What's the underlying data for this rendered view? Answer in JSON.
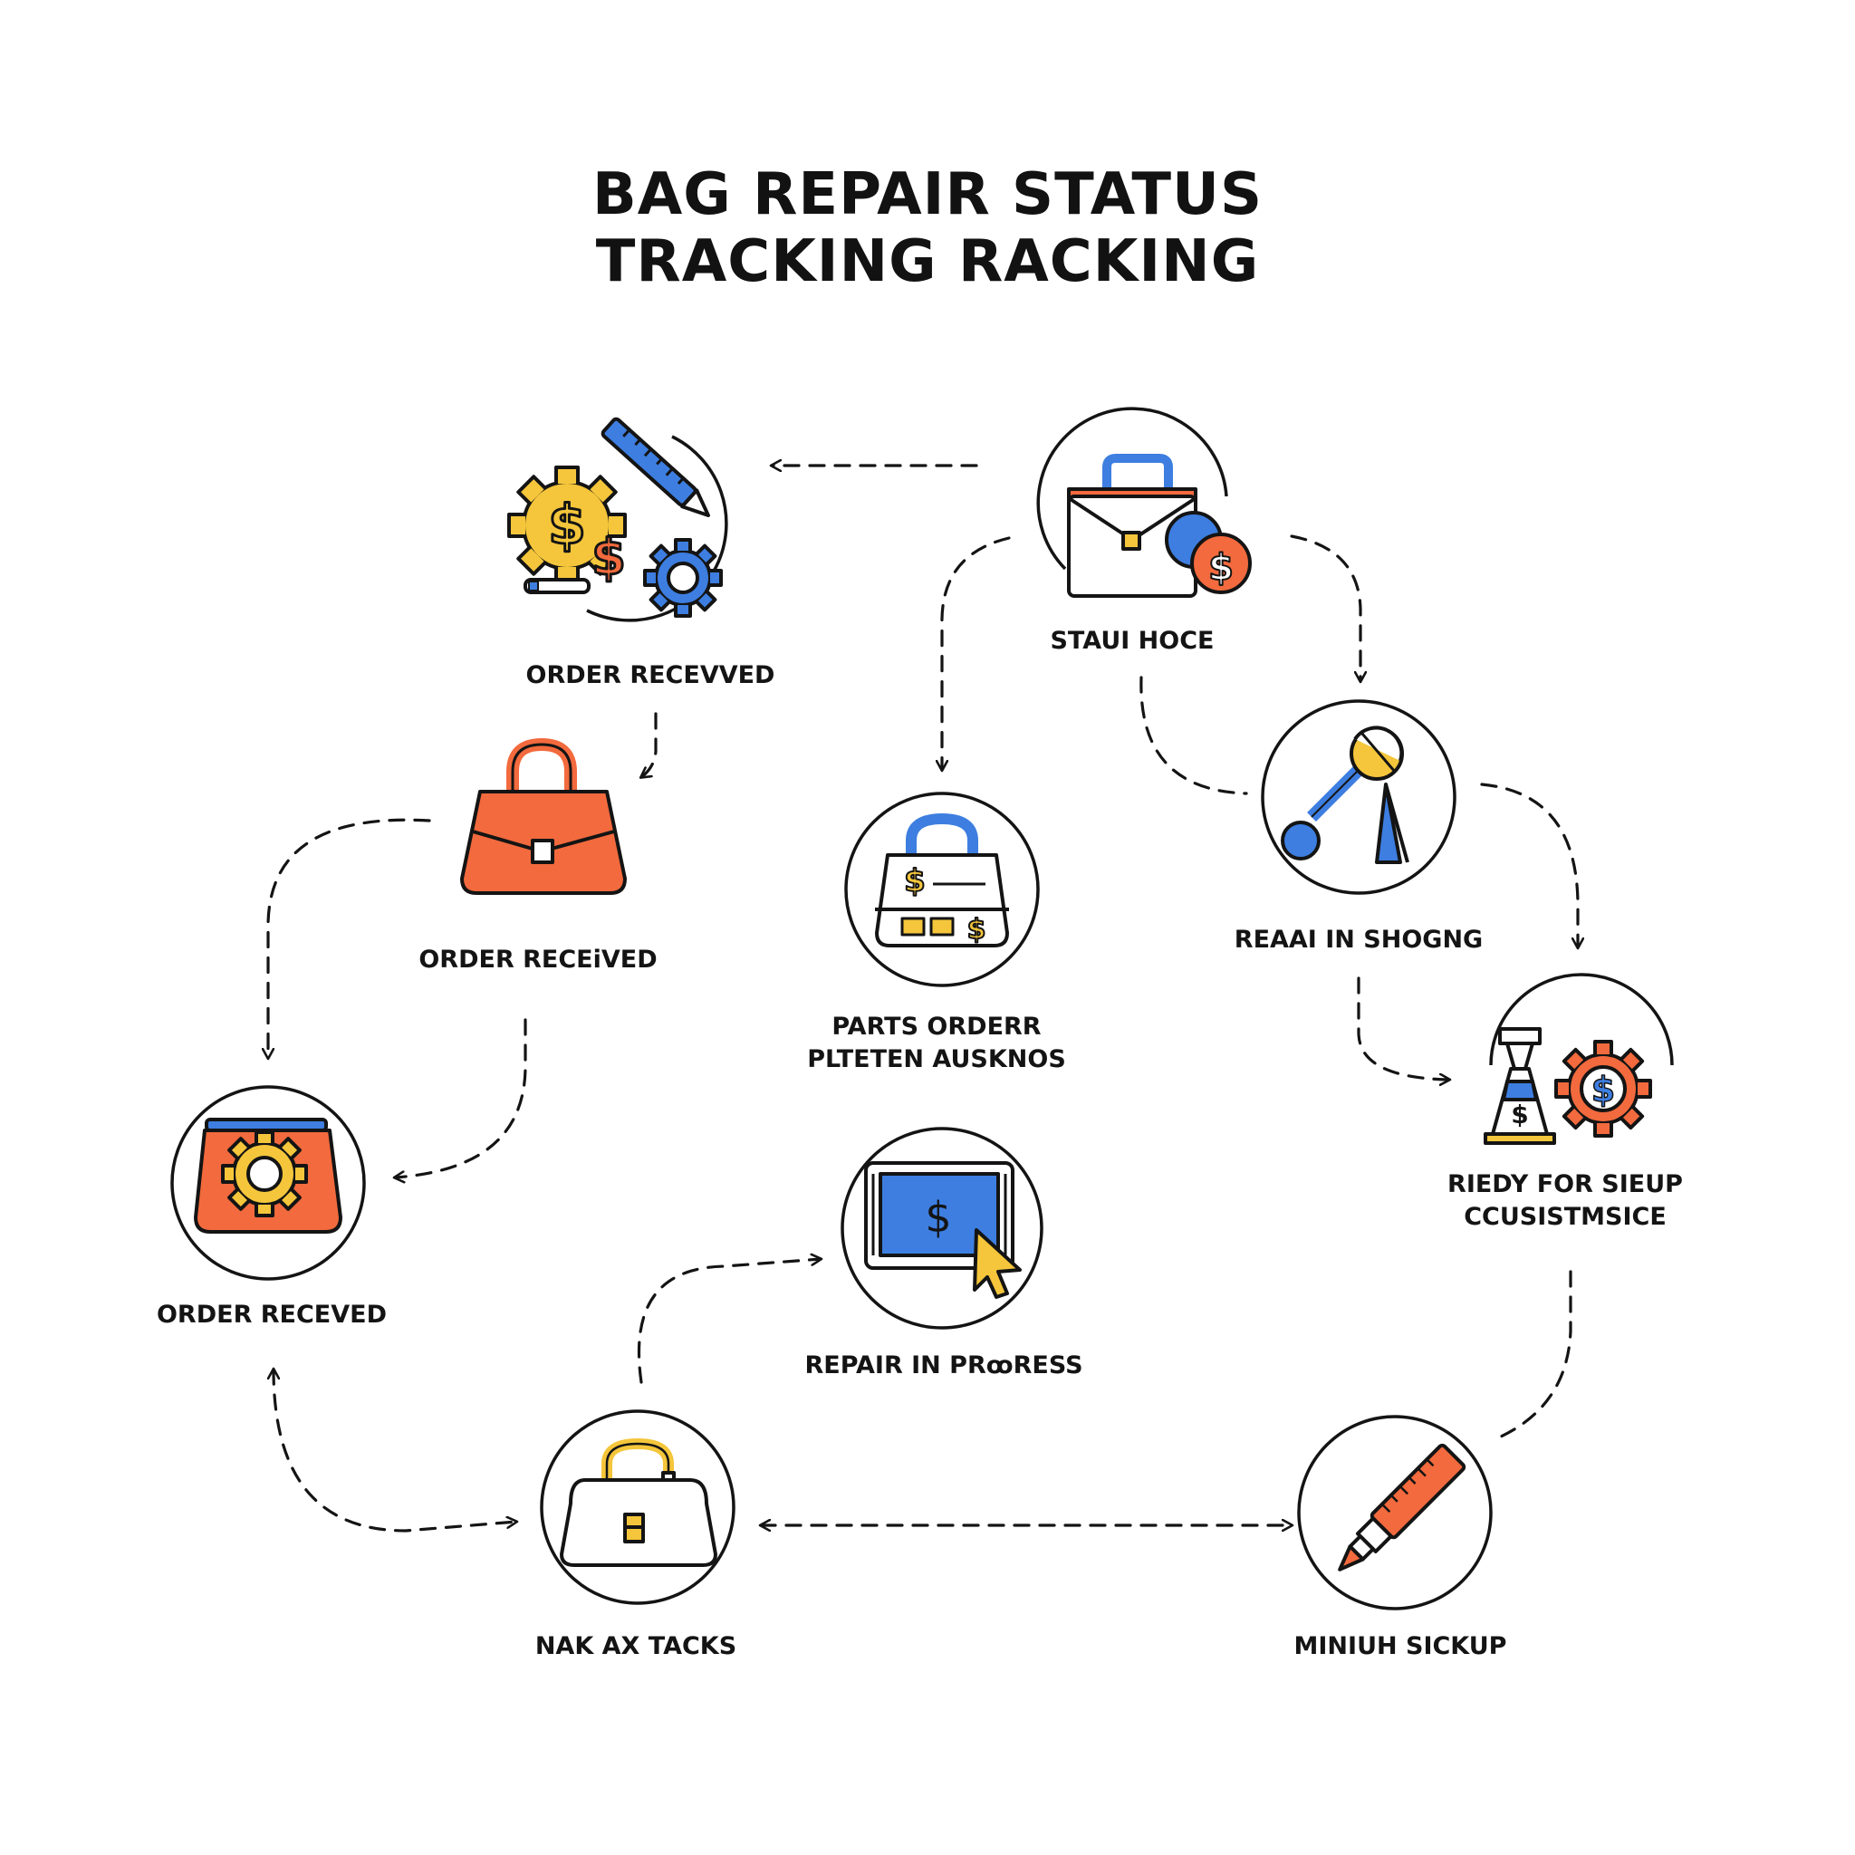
{
  "title": {
    "line1": "BAG REPAIR STATUS",
    "line2": "TRACKING RACKING"
  },
  "colors": {
    "outline": "#141414",
    "orange": "#f26a3d",
    "blue": "#3d7ee0",
    "yellow": "#f5c63b",
    "white": "#ffffff"
  },
  "nodes": [
    {
      "id": "tools-dollar-gear",
      "icon": "gear-dollar-ruler-icon",
      "lines": [
        "ORDER RECEVVED"
      ]
    },
    {
      "id": "briefcase-coin",
      "icon": "briefcase-coin-icon",
      "lines": [
        "STAUI HOCE"
      ]
    },
    {
      "id": "orange-handbag",
      "icon": "orange-handbag-icon",
      "lines": [
        "ORDER RECEiVED"
      ]
    },
    {
      "id": "register-bag",
      "icon": "cash-register-bag-icon",
      "lines": [
        "PARTS ORDERR",
        "PLTETEN AUSKNOS"
      ]
    },
    {
      "id": "key-magnifier",
      "icon": "key-tag-icon",
      "lines": [
        "REAAI IN SHOGNG"
      ]
    },
    {
      "id": "gear-bag",
      "icon": "gear-bag-icon",
      "lines": [
        "ORDER RECEVED"
      ]
    },
    {
      "id": "cone-gear",
      "icon": "cone-gear-dollar-icon",
      "lines": [
        "RIEDY FOR SIEUP",
        "CCUSISTMSICE"
      ]
    },
    {
      "id": "screen-dollar",
      "icon": "screen-dollar-cursor-icon",
      "lines": [
        "REPAIR IN PRꝏRESS"
      ]
    },
    {
      "id": "white-handbag",
      "icon": "white-handbag-icon",
      "lines": [
        "NAK AX TACKS"
      ]
    },
    {
      "id": "glue-tube",
      "icon": "glue-tube-icon",
      "lines": [
        "MINIUH SICKUP"
      ]
    }
  ]
}
